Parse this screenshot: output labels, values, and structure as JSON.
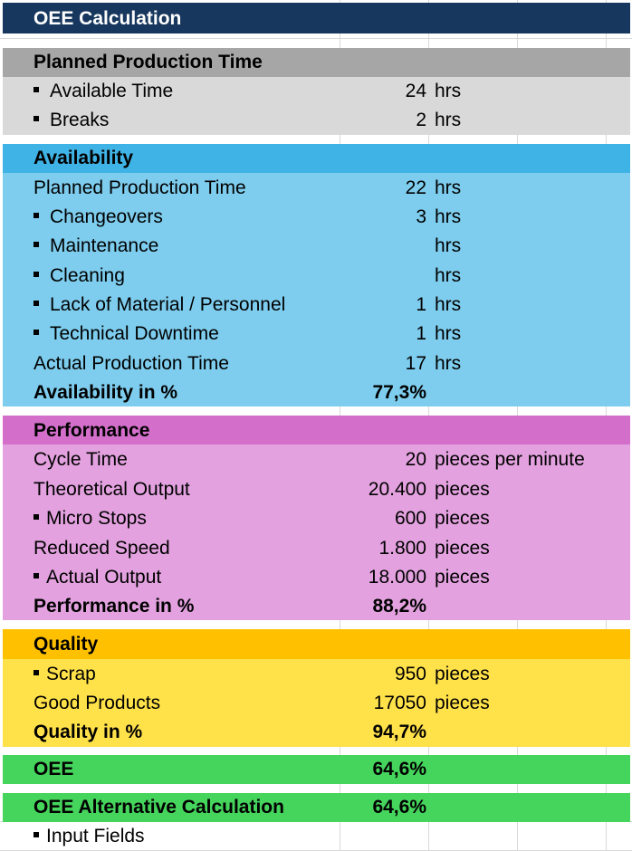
{
  "title": "OEE Calculation",
  "colors": {
    "title_bg": "#17375e",
    "planned_header": "#a6a6a6",
    "planned_body": "#d9d9d9",
    "avail_header": "#40b3e6",
    "avail_body": "#7ecdee",
    "perf_header": "#d36fcb",
    "perf_body": "#e3a2df",
    "quality_header": "#ffc000",
    "quality_body": "#ffe14a",
    "oee_bg": "#45d45c"
  },
  "planned": {
    "header": "Planned Production Time",
    "rows": [
      {
        "label": "Available Time",
        "value": "24",
        "unit": "hrs"
      },
      {
        "label": "Breaks",
        "value": "2",
        "unit": "hrs"
      }
    ]
  },
  "availability": {
    "header": "Availability",
    "rows": [
      {
        "label": "Planned Production Time",
        "value": "22",
        "unit": "hrs"
      },
      {
        "label": "Changeovers",
        "value": "3",
        "unit": "hrs"
      },
      {
        "label": "Maintenance",
        "value": "",
        "unit": "hrs"
      },
      {
        "label": "Cleaning",
        "value": "",
        "unit": "hrs"
      },
      {
        "label": "Lack of Material / Personnel",
        "value": "1",
        "unit": "hrs"
      },
      {
        "label": "Technical Downtime",
        "value": "1",
        "unit": "hrs"
      },
      {
        "label": "Actual Production Time",
        "value": "17",
        "unit": "hrs"
      }
    ],
    "result_label": "Availability in %",
    "result_value": "77,3%"
  },
  "performance": {
    "header": "Performance",
    "rows": [
      {
        "label": "Cycle Time",
        "value": "20",
        "unit": "pieces per minute"
      },
      {
        "label": "Theoretical Output",
        "value": "20.400",
        "unit": "pieces"
      },
      {
        "label": "Micro Stops",
        "value": "600",
        "unit": "pieces"
      },
      {
        "label": "Reduced Speed",
        "value": "1.800",
        "unit": "pieces"
      },
      {
        "label": "Actual Output",
        "value": "18.000",
        "unit": "pieces"
      }
    ],
    "result_label": "Performance in %",
    "result_value": "88,2%"
  },
  "quality": {
    "header": "Quality",
    "rows": [
      {
        "label": "Scrap",
        "value": "950",
        "unit": "pieces"
      },
      {
        "label": "Good Products",
        "value": "17050",
        "unit": "pieces"
      }
    ],
    "result_label": "Quality in %",
    "result_value": "94,7%"
  },
  "oee": {
    "label": "OEE",
    "value": "64,6%"
  },
  "oee_alt": {
    "label": "OEE Alternative Calculation",
    "value": "64,6%"
  },
  "legend": {
    "label": "Input Fields"
  }
}
